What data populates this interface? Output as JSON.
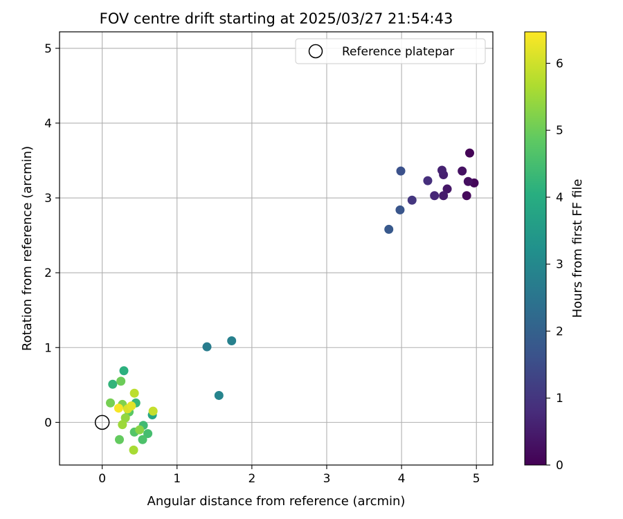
{
  "chart_data": {
    "type": "scatter",
    "title": "FOV centre drift starting at 2025/03/27 21:54:43",
    "xlabel": "Angular distance from reference (arcmin)",
    "ylabel": "Rotation from reference (arcmin)",
    "xlim": [
      -0.57,
      5.22
    ],
    "ylim": [
      -0.57,
      5.22
    ],
    "xticks": [
      0,
      1,
      2,
      3,
      4,
      5
    ],
    "yticks": [
      0,
      1,
      2,
      3,
      4,
      5
    ],
    "grid": true,
    "legend": {
      "placement": "top-right",
      "entries": [
        "Reference platepar"
      ]
    },
    "reference_point": {
      "x": 0,
      "y": 0,
      "label": "Reference platepar"
    },
    "colorbar": {
      "label": "Hours from first FF file",
      "range": [
        0,
        6.47
      ],
      "ticks": [
        0,
        1,
        2,
        3,
        4,
        5,
        6
      ],
      "colormap": "viridis"
    },
    "points": [
      {
        "x": 4.91,
        "y": 3.6,
        "c": 0.05
      },
      {
        "x": 4.97,
        "y": 3.2,
        "c": 0.1
      },
      {
        "x": 4.87,
        "y": 3.03,
        "c": 0.15
      },
      {
        "x": 4.89,
        "y": 3.22,
        "c": 0.25
      },
      {
        "x": 4.81,
        "y": 3.36,
        "c": 0.3
      },
      {
        "x": 4.61,
        "y": 3.12,
        "c": 0.4
      },
      {
        "x": 4.56,
        "y": 3.03,
        "c": 0.5
      },
      {
        "x": 4.56,
        "y": 3.31,
        "c": 0.55
      },
      {
        "x": 4.54,
        "y": 3.37,
        "c": 0.6
      },
      {
        "x": 4.44,
        "y": 3.03,
        "c": 0.7
      },
      {
        "x": 4.35,
        "y": 3.23,
        "c": 0.85
      },
      {
        "x": 4.14,
        "y": 2.97,
        "c": 1.0
      },
      {
        "x": 3.99,
        "y": 3.36,
        "c": 1.6
      },
      {
        "x": 3.98,
        "y": 2.84,
        "c": 1.7
      },
      {
        "x": 3.83,
        "y": 2.58,
        "c": 1.8
      },
      {
        "x": 1.4,
        "y": 1.01,
        "c": 2.7
      },
      {
        "x": 1.73,
        "y": 1.09,
        "c": 2.8
      },
      {
        "x": 1.56,
        "y": 0.36,
        "c": 2.9
      },
      {
        "x": 0.67,
        "y": 0.1,
        "c": 3.8
      },
      {
        "x": 0.29,
        "y": 0.69,
        "c": 4.1
      },
      {
        "x": 0.14,
        "y": 0.51,
        "c": 4.2
      },
      {
        "x": 0.45,
        "y": 0.26,
        "c": 4.3
      },
      {
        "x": 0.55,
        "y": -0.04,
        "c": 4.4
      },
      {
        "x": 0.61,
        "y": -0.15,
        "c": 4.5
      },
      {
        "x": 0.54,
        "y": -0.23,
        "c": 4.6
      },
      {
        "x": 0.43,
        "y": -0.13,
        "c": 4.7
      },
      {
        "x": 0.36,
        "y": 0.14,
        "c": 4.8
      },
      {
        "x": 0.23,
        "y": -0.23,
        "c": 4.9
      },
      {
        "x": 0.25,
        "y": 0.55,
        "c": 5.0
      },
      {
        "x": 0.11,
        "y": 0.26,
        "c": 5.1
      },
      {
        "x": 0.27,
        "y": 0.24,
        "c": 5.2
      },
      {
        "x": 0.5,
        "y": -0.1,
        "c": 5.3
      },
      {
        "x": 0.31,
        "y": 0.06,
        "c": 5.4
      },
      {
        "x": 0.27,
        "y": -0.03,
        "c": 5.5
      },
      {
        "x": 0.42,
        "y": -0.37,
        "c": 5.6
      },
      {
        "x": 0.43,
        "y": 0.39,
        "c": 5.8
      },
      {
        "x": 0.68,
        "y": 0.15,
        "c": 5.9
      },
      {
        "x": 0.34,
        "y": 0.18,
        "c": 6.1
      },
      {
        "x": 0.39,
        "y": 0.22,
        "c": 6.2
      },
      {
        "x": 0.22,
        "y": 0.19,
        "c": 6.4
      }
    ]
  }
}
